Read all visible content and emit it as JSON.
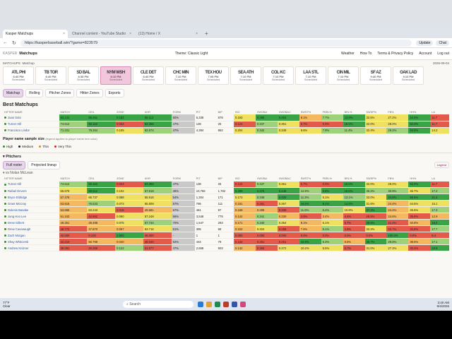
{
  "browser": {
    "tabs": [
      {
        "label": "Kasper Matchups",
        "active": true
      },
      {
        "label": "Channel content - YouTube Studio",
        "active": false
      },
      {
        "label": "(13) Home / X",
        "active": false
      }
    ],
    "url": "https://kasperbaseball.win/?game=823579",
    "profile": "Update",
    "chat": "Chat"
  },
  "header": {
    "brand": "KASPER",
    "title": "Matchups",
    "theme": "Theme: Classic Light",
    "links": [
      "Weather",
      "How To",
      "Terms & Privacy Policy",
      "Account",
      "Log out"
    ]
  },
  "subheader": {
    "label": "MATCHUPS",
    "sub": "Matchup",
    "date": "2026-09-04"
  },
  "games": [
    {
      "logos": "ATL PHI",
      "time": "6:40 PM",
      "status": "Scheduled"
    },
    {
      "logos": "TB TOR",
      "time": "6:40 PM",
      "status": "Scheduled"
    },
    {
      "logos": "SD BAL",
      "time": "6:35 PM",
      "status": "Scheduled"
    },
    {
      "logos": "NYM WSH",
      "time": "6:10 PM",
      "status": "Scheduled",
      "selected": true
    },
    {
      "logos": "CLE DET",
      "time": "6:40 PM",
      "status": "Scheduled"
    },
    {
      "logos": "CHC MIN",
      "time": "7:10 PM",
      "status": "Scheduled"
    },
    {
      "logos": "TEX HOU",
      "time": "7:05 PM",
      "status": "Scheduled"
    },
    {
      "logos": "SEA ATH",
      "time": "7:10 PM",
      "status": "Scheduled"
    },
    {
      "logos": "COL KC",
      "time": "7:10 PM",
      "status": "Scheduled"
    },
    {
      "logos": "LAA STL",
      "time": "7:10 PM",
      "status": "Scheduled"
    },
    {
      "logos": "CIN MIL",
      "time": "7:10 PM",
      "status": "Scheduled"
    },
    {
      "logos": "SF AZ",
      "time": "9:40 PM",
      "status": "Scheduled"
    },
    {
      "logos": "OAK LAD",
      "time": "9:10 PM",
      "status": "Scheduled"
    }
  ],
  "navtabs": [
    "Matchup",
    "Rolling",
    "Pitcher Zones",
    "Hitter Zones",
    "Exports"
  ],
  "best": {
    "title": "Best Matchups",
    "columns": [
      "HITTER NAME",
      "MATCH",
      "CEIL",
      "ZONE",
      "KHR",
      "FORM",
      "PIT",
      "BIP",
      "ISO",
      "XWOBA",
      "XWOBAC",
      "SWST%",
      "PBRL%",
      "BRL%",
      "SWSP%",
      "FB%",
      "HH%",
      "LA"
    ],
    "rows": [
      [
        "Juan Soto",
        "83.141",
        "86.061",
        "0.182",
        "68.113",
        "50%",
        "5,338",
        "878",
        "0.193",
        "0.390",
        "0.453",
        "8.1%",
        "7.7%",
        "13.8%",
        "32.5%",
        "27.2%",
        "54.0%",
        "11.7"
      ],
      [
        "Turner Hill",
        "74.512",
        "93.116",
        "0.033",
        "63.356",
        "47%",
        "138",
        "25",
        "0.124",
        "0.347",
        "0.361",
        "5.7%",
        "0.0%",
        "16.0%",
        "32.0%",
        "28.0%",
        "52.0%",
        "11.7"
      ],
      [
        "Francisco Lindor",
        "71.221",
        "79.264",
        "0.105",
        "62.674",
        "47%",
        "4,384",
        "862",
        "0.204",
        "0.342",
        "0.349",
        "9.6%",
        "7.9%",
        "11.4%",
        "32.4%",
        "29.2%",
        "55.8%",
        "14.2"
      ]
    ]
  },
  "sample": {
    "title": "Player name sample size",
    "note": "(legend applies to player name text color)",
    "levels": [
      {
        "label": "High",
        "color": "#2e8b2e"
      },
      {
        "label": "Medium",
        "color": "#222222"
      },
      {
        "label": "Thin",
        "color": "#d88a1a"
      },
      {
        "label": "Very Thin",
        "color": "#c62828"
      }
    ]
  },
  "pitchers": {
    "title": "Pitchers",
    "roster_tabs": [
      "Full roster",
      "Projected lineup"
    ],
    "legend": "Legend",
    "vs": "vs Nolan McLean"
  },
  "full": {
    "rows": [
      [
        "Turner Hill",
        "74.512",
        "93.116",
        "0.033",
        "63.356",
        "47%",
        "138",
        "25",
        "0.124",
        "0.347",
        "0.361",
        "5.7%",
        "0.0%",
        "16.0%",
        "32.0%",
        "28.0%",
        "52.0%",
        "11.7"
      ],
      [
        "Rafael Devers",
        "65.879",
        "90.512",
        "0.102",
        "57.818",
        "46%",
        "10,756",
        "1,782",
        "0.289",
        "0.375",
        "0.448",
        "12.9%",
        "9.8%",
        "15.6%",
        "35.2%",
        "30.9%",
        "45.7%",
        "17.2"
      ],
      [
        "Bryce Eldridge",
        "57.476",
        "66.737",
        "0.088",
        "55.916",
        "54%",
        "1,304",
        "171",
        "0.173",
        "0.348",
        "0.420",
        "11.3%",
        "5.1%",
        "13.1%",
        "33.0%",
        "34.8%",
        "58.6%",
        "21.4"
      ],
      [
        "Grant McCray",
        "53.815",
        "76.533",
        "0.073",
        "55.809",
        "57%",
        "795",
        "111",
        "0.161",
        "0.281",
        "0.357",
        "16.6%",
        "9.1%",
        "14.0%",
        "31.6%",
        "24.4%",
        "44.5%",
        "15.1"
      ],
      [
        "Dolenis Basabe",
        "53.865",
        "63.243",
        "0.016",
        "49.681",
        "67%",
        "461",
        "97",
        "0.169",
        "0.289",
        "0.308",
        "11.6%",
        "6.4%",
        "10.8%",
        "37.2%",
        "24.4%",
        "45.6%",
        "17.3"
      ],
      [
        "Jung Hoo Lee",
        "51.343",
        "42.862",
        "0.090",
        "57.248",
        "66%",
        "3,548",
        "778",
        "0.142",
        "0.341",
        "0.330",
        "4.6%",
        "3.4%",
        "4.4%",
        "26.6%",
        "24.6%",
        "35.6%",
        "12.9"
      ],
      [
        "Drew Gilbert",
        "49.351",
        "49.498",
        "0.075",
        "57.734",
        "70%",
        "1,547",
        "293",
        "0.171",
        "0.340",
        "0.354",
        "8.1%",
        "5.1%",
        "5.7%",
        "39.5%",
        "21.4%",
        "40.8%",
        "18.4"
      ],
      [
        "Drew Cavanaugh",
        "48.772",
        "47.870",
        "0.067",
        "53.716",
        "61%",
        "395",
        "66",
        "0.152",
        "0.324",
        "0.288",
        "7.6%",
        "6.1%",
        "4.9%",
        "32.2%",
        "22.7%",
        "34.8%",
        "17.7"
      ],
      [
        "Zach Morgan",
        "42.500",
        "0.100",
        "2.500",
        "45.000",
        "-",
        "1",
        "1",
        "0.000",
        "0.000",
        "0.000",
        "0.0%",
        "0.0%",
        "0.0%",
        "0.0%",
        "100.0%",
        "0.0%",
        "6.4"
      ],
      [
        "Shay Whitcomb",
        "42.210",
        "50.798",
        "0.040",
        "46.040",
        "52%",
        "444",
        "79",
        "0.132",
        "0.251",
        "0.251",
        "15.9%",
        "6.3%",
        "8.6%",
        "35.7%",
        "29.8%",
        "38.5%",
        "17.1"
      ],
      [
        "Andrew Knizner",
        "38.291",
        "26.259",
        "0.122",
        "41.577",
        "47%",
        "2,658",
        "503",
        "0.142",
        "0.284",
        "0.372",
        "10.2%",
        "5.5%",
        "5.7%",
        "31.0%",
        "27.3%",
        "33.4%",
        "18.9"
      ]
    ]
  },
  "taskbar": {
    "temp": "77°F",
    "cond": "Clear",
    "search": "Search",
    "time": "3:40 AM",
    "date": "9/4/2026"
  },
  "colors": {
    "green": "#3aa346",
    "lightgreen": "#9fd17a",
    "yellow": "#f0e060",
    "orange": "#f4b860",
    "red": "#e45a4a",
    "accent": "#e8d6ec"
  }
}
